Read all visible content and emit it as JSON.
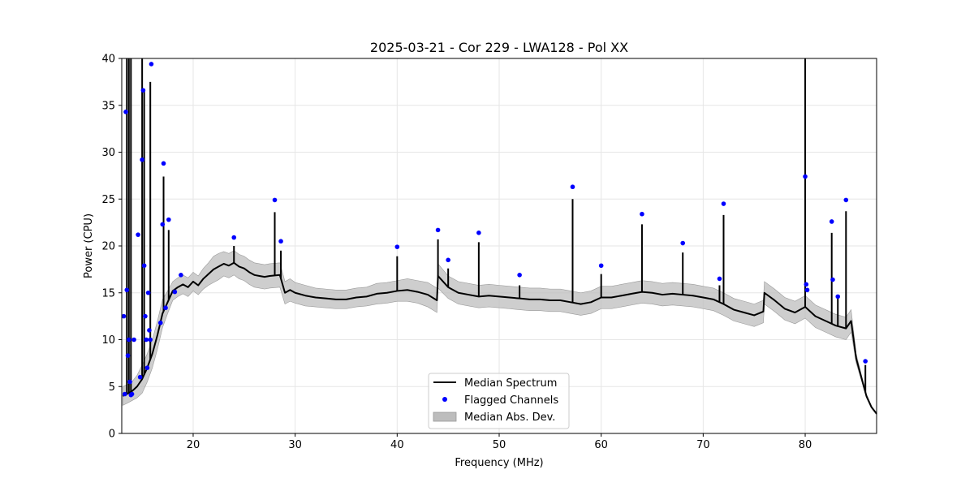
{
  "chart_data": {
    "type": "line",
    "title": "2025-03-21 - Cor 229 - LWA128 - Pol XX",
    "xlabel": "Frequency (MHz)",
    "ylabel": "Power (CPU)",
    "xlim": [
      13,
      87
    ],
    "ylim": [
      0,
      40
    ],
    "grid": true,
    "legend_position": "lower-center",
    "x_ticks": [
      20,
      30,
      40,
      50,
      60,
      70,
      80
    ],
    "y_ticks": [
      0,
      5,
      10,
      15,
      20,
      25,
      30,
      35,
      40
    ],
    "series": [
      {
        "name": "Median Spectrum",
        "color": "#000000",
        "x": [
          13.1,
          13.5,
          14.0,
          14.5,
          15.0,
          15.5,
          16.0,
          16.5,
          17.0,
          17.5,
          18.0,
          18.5,
          19.0,
          19.5,
          20.0,
          20.5,
          21.0,
          21.5,
          22.0,
          22.5,
          23.0,
          23.5,
          24.0,
          24.5,
          25.0,
          25.5,
          26.0,
          26.5,
          27.0,
          27.5,
          28.5,
          29.0,
          29.5,
          30.0,
          31.0,
          32.0,
          33.0,
          34.0,
          35.0,
          36.0,
          37.0,
          38.0,
          39.0,
          40.0,
          41.0,
          42.0,
          43.0,
          43.9,
          44.0,
          45.0,
          46.0,
          47.0,
          48.0,
          49.0,
          50.0,
          51.0,
          52.0,
          53.0,
          54.0,
          55.0,
          56.0,
          57.0,
          58.0,
          59.0,
          60.0,
          61.0,
          62.0,
          63.0,
          64.0,
          65.0,
          66.0,
          67.0,
          68.0,
          69.0,
          70.0,
          71.0,
          72.0,
          73.0,
          74.0,
          75.0,
          75.9,
          76.0,
          77.0,
          78.0,
          79.0,
          80.0,
          81.0,
          82.0,
          83.0,
          84.0,
          84.5,
          85.0,
          85.5,
          86.0,
          86.5,
          87.0
        ],
        "y": [
          4.0,
          4.2,
          4.5,
          5.0,
          5.8,
          7.0,
          8.5,
          10.5,
          12.8,
          14.0,
          15.2,
          15.6,
          15.9,
          15.6,
          16.2,
          15.8,
          16.5,
          17.0,
          17.5,
          17.8,
          18.1,
          17.9,
          18.2,
          17.8,
          17.6,
          17.2,
          16.9,
          16.8,
          16.7,
          16.8,
          16.9,
          15.0,
          15.3,
          15.0,
          14.7,
          14.5,
          14.4,
          14.3,
          14.3,
          14.5,
          14.6,
          14.9,
          15.0,
          15.2,
          15.3,
          15.1,
          14.8,
          14.2,
          16.8,
          15.6,
          15.0,
          14.8,
          14.6,
          14.7,
          14.6,
          14.5,
          14.4,
          14.3,
          14.3,
          14.2,
          14.2,
          14.0,
          13.8,
          14.0,
          14.5,
          14.5,
          14.7,
          14.9,
          15.1,
          15.0,
          14.8,
          14.9,
          14.8,
          14.7,
          14.5,
          14.3,
          13.8,
          13.2,
          12.9,
          12.6,
          13.0,
          15.0,
          14.2,
          13.3,
          12.9,
          13.5,
          12.5,
          12.0,
          11.5,
          11.2,
          12.0,
          8.0,
          6.0,
          4.0,
          2.8,
          2.1
        ]
      },
      {
        "name": "Flagged Channels",
        "color": "#0000ff",
        "type": "scatter",
        "x": [
          13.2,
          13.3,
          13.4,
          13.5,
          13.6,
          13.7,
          13.8,
          13.9,
          14.0,
          14.2,
          14.6,
          14.8,
          15.0,
          15.1,
          15.2,
          15.3,
          15.4,
          15.5,
          15.6,
          15.7,
          15.8,
          15.9,
          16.8,
          17.0,
          17.1,
          17.3,
          17.6,
          18.2,
          18.8,
          24.0,
          28.0,
          28.6,
          40.0,
          44.0,
          45.0,
          48.0,
          52.0,
          57.2,
          60.0,
          64.0,
          68.0,
          71.6,
          72.0,
          80.0,
          80.1,
          80.2,
          82.6,
          82.7,
          83.2,
          84.0,
          85.9
        ],
        "y": [
          12.5,
          4.2,
          34.3,
          15.3,
          8.3,
          10.0,
          5.5,
          4.1,
          4.2,
          10.0,
          21.2,
          6.0,
          29.2,
          36.6,
          17.9,
          12.5,
          10.0,
          7.0,
          15.0,
          11.0,
          10.0,
          39.4,
          11.8,
          22.3,
          28.8,
          13.4,
          22.8,
          15.1,
          16.9,
          20.9,
          24.9,
          20.5,
          19.9,
          21.7,
          18.5,
          21.4,
          16.9,
          26.3,
          17.9,
          23.4,
          20.3,
          16.5,
          24.5,
          27.4,
          15.9,
          15.3,
          22.6,
          16.4,
          14.6,
          24.9,
          7.7
        ]
      },
      {
        "name": "Median Abs. Dev.",
        "color": "#bdbdbd",
        "type": "area",
        "spread": [
          1.0,
          1.0,
          1.0,
          1.2,
          1.5,
          1.5,
          1.5,
          1.5,
          1.5,
          1.2,
          1.0,
          1.0,
          1.0,
          1.0,
          1.0,
          1.0,
          1.1,
          1.2,
          1.4,
          1.4,
          1.3,
          1.3,
          1.3,
          1.3,
          1.3,
          1.3,
          1.3,
          1.3,
          1.3,
          1.3,
          1.3,
          1.2,
          1.2,
          1.1,
          1.1,
          1.0,
          1.0,
          1.0,
          1.0,
          1.0,
          1.0,
          1.1,
          1.1,
          1.1,
          1.2,
          1.2,
          1.3,
          1.3,
          1.3,
          1.2,
          1.2,
          1.2,
          1.2,
          1.2,
          1.2,
          1.2,
          1.2,
          1.2,
          1.2,
          1.2,
          1.2,
          1.2,
          1.2,
          1.2,
          1.2,
          1.2,
          1.2,
          1.2,
          1.2,
          1.2,
          1.2,
          1.2,
          1.2,
          1.2,
          1.2,
          1.2,
          1.2,
          1.2,
          1.2,
          1.2,
          1.2,
          1.2,
          1.2,
          1.2,
          1.2,
          1.2,
          1.2,
          1.2,
          1.2,
          1.2,
          1.2,
          0.5,
          0.3,
          0.2,
          0.1,
          0.1
        ]
      }
    ],
    "spikes": [
      {
        "x": 13.5,
        "y": 40
      },
      {
        "x": 13.7,
        "y": 40
      },
      {
        "x": 13.9,
        "y": 40
      },
      {
        "x": 15.0,
        "y": 40
      },
      {
        "x": 15.2,
        "y": 36.6
      },
      {
        "x": 15.8,
        "y": 37.5
      },
      {
        "x": 17.1,
        "y": 27.4
      },
      {
        "x": 17.6,
        "y": 21.7
      },
      {
        "x": 24.0,
        "y": 20.0
      },
      {
        "x": 28.0,
        "y": 23.6
      },
      {
        "x": 28.6,
        "y": 19.5
      },
      {
        "x": 40.0,
        "y": 18.9
      },
      {
        "x": 44.0,
        "y": 20.7
      },
      {
        "x": 45.0,
        "y": 17.6
      },
      {
        "x": 48.0,
        "y": 20.4
      },
      {
        "x": 52.0,
        "y": 15.8
      },
      {
        "x": 57.2,
        "y": 25.0
      },
      {
        "x": 60.0,
        "y": 17.0
      },
      {
        "x": 64.0,
        "y": 22.3
      },
      {
        "x": 68.0,
        "y": 19.3
      },
      {
        "x": 71.6,
        "y": 15.8
      },
      {
        "x": 72.0,
        "y": 23.3
      },
      {
        "x": 80.0,
        "y": 40
      },
      {
        "x": 82.6,
        "y": 21.4
      },
      {
        "x": 83.2,
        "y": 14.6
      },
      {
        "x": 84.0,
        "y": 23.7
      },
      {
        "x": 85.9,
        "y": 7.3
      }
    ]
  },
  "legend": {
    "median_label": "Median Spectrum",
    "flagged_label": "Flagged Channels",
    "mad_label": "Median Abs. Dev."
  }
}
